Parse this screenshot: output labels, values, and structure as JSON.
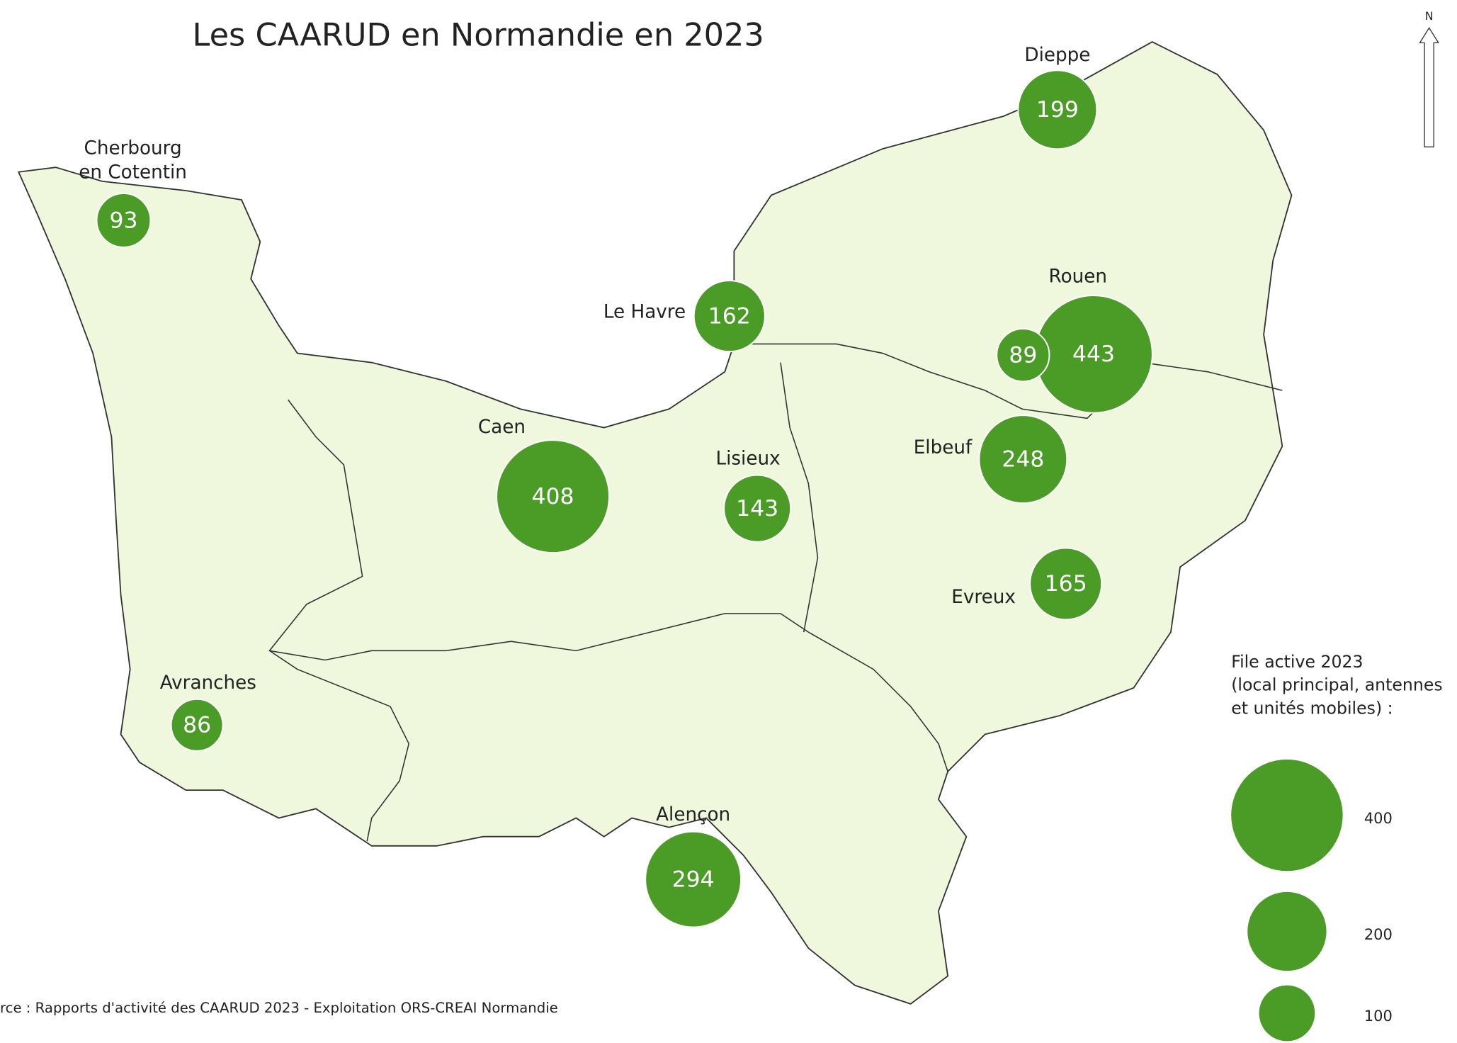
{
  "title": "Les CAARUD en Normandie en 2023",
  "north": "N",
  "cities": [
    {
      "label": [
        "Dieppe"
      ],
      "value": 199
    },
    {
      "label": [
        "Cherbourg",
        "en Cotentin"
      ],
      "value": 93
    },
    {
      "label": [
        "Le Havre"
      ],
      "value": 162
    },
    {
      "label": [
        "Rouen"
      ],
      "value": 443
    },
    {
      "value": 89
    },
    {
      "label": [
        "Caen"
      ],
      "value": 408
    },
    {
      "label": [
        "Lisieux"
      ],
      "value": 143
    },
    {
      "label": [
        "Elbeuf"
      ],
      "value": 248
    },
    {
      "label": [
        "Evreux"
      ],
      "value": 165
    },
    {
      "label": [
        "Avranches"
      ],
      "value": 86
    },
    {
      "label": [
        "Alençon"
      ],
      "value": 294
    }
  ],
  "legend": {
    "title": [
      "File active 2023",
      "(local principal, antennes",
      " et unités mobiles) :"
    ],
    "values": [
      400,
      200,
      100
    ]
  },
  "source": "rce : Rapports d'activité des CAARUD 2023 - Exploitation ORS-CREAI Normandie"
}
